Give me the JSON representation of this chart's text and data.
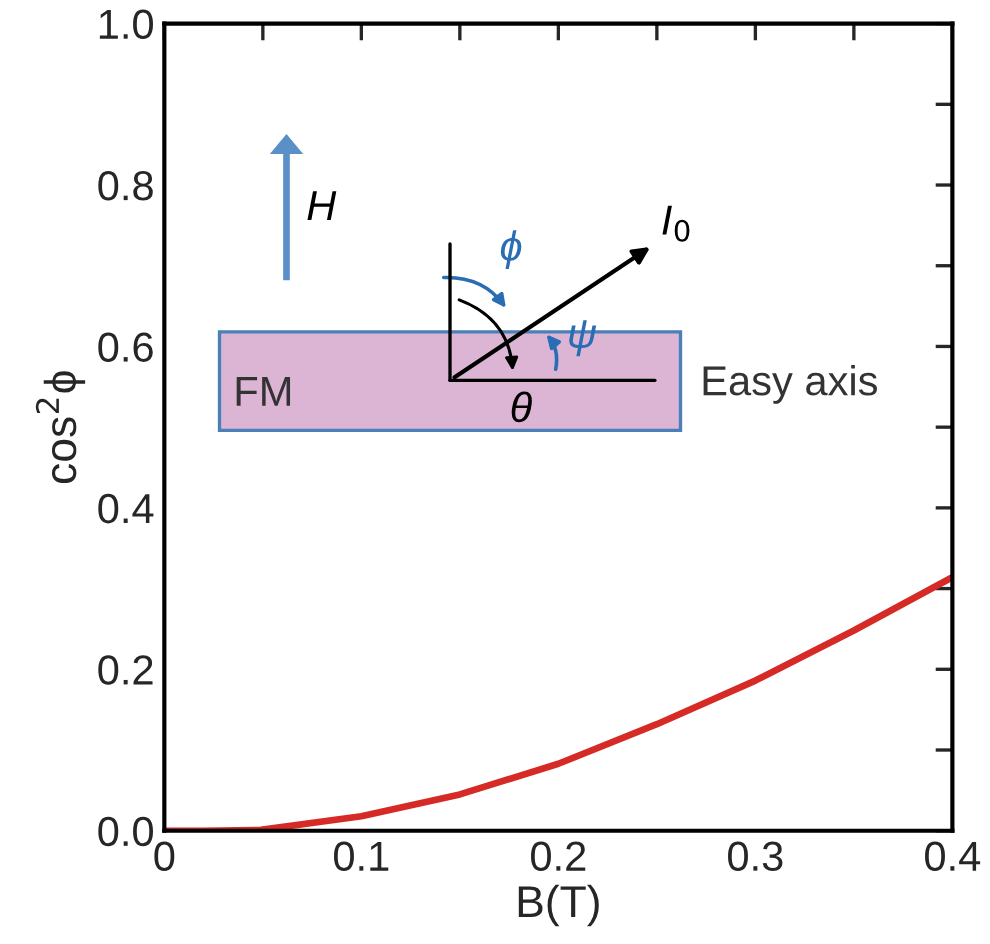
{
  "chart_data": {
    "type": "line",
    "xlabel": "B(T)",
    "ylabel": "cos$^{2}$ϕ",
    "x": [
      0,
      0.02,
      0.049,
      0.1,
      0.15,
      0.2,
      0.25,
      0.3,
      0.35,
      0.4
    ],
    "series": [
      {
        "color": "#d62a26",
        "values": [
          0.0,
          0.0,
          0.001,
          0.018,
          0.045,
          0.083,
          0.132,
          0.186,
          0.248,
          0.314
        ]
      }
    ],
    "xlim": [
      0,
      0.4
    ],
    "ylim": [
      0,
      1.0
    ],
    "xticks": [
      0,
      {
        "value": 0.05,
        "label": null
      },
      0.1,
      {
        "value": 0.15,
        "label": null
      },
      0.2,
      {
        "value": 0.25,
        "label": null
      },
      0.3,
      {
        "value": 0.35,
        "label": null
      },
      0.4
    ],
    "yticks": [
      {
        "value": 0.0,
        "label": "0.0"
      },
      {
        "value": 0.1,
        "label": null
      },
      0.2,
      {
        "value": 0.3,
        "label": null
      },
      0.4,
      {
        "value": 0.5,
        "label": null
      },
      0.6,
      {
        "value": 0.7,
        "label": null
      },
      0.8,
      {
        "value": 0.9,
        "label": null
      },
      {
        "value": 1.0,
        "label": "1.0"
      }
    ],
    "grid": false,
    "legend": false,
    "marker": "none",
    "line_style": "solid",
    "annotations": [
      "H",
      "ϕ",
      "I$_{0}$",
      "ψ",
      "θ",
      "FM",
      "Easy axis"
    ]
  }
}
